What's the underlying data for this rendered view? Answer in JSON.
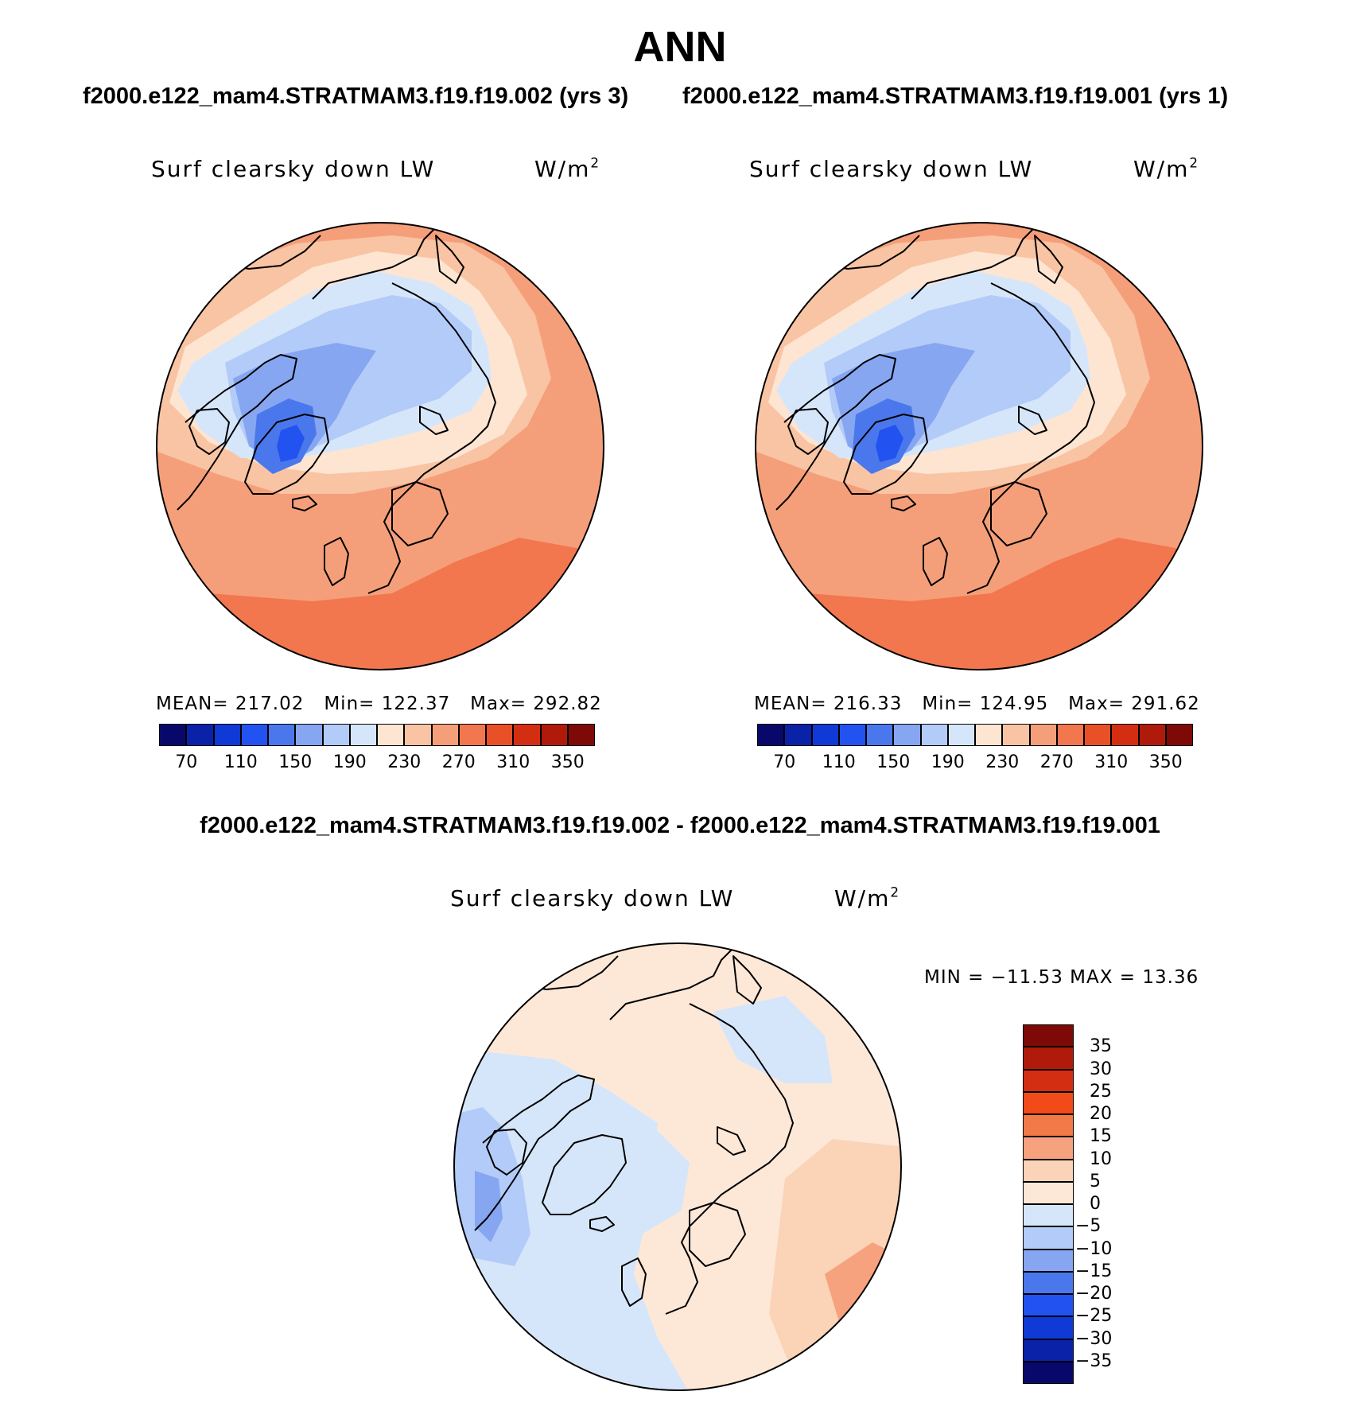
{
  "header": {
    "title": "ANN",
    "left_case": "f2000.e122_mam4.STRATMAM3.f19.f19.002 (yrs 3)",
    "right_case": "f2000.e122_mam4.STRATMAM3.f19.f19.001 (yrs 1)",
    "diff_title": "f2000.e122_mam4.STRATMAM3.f19.f19.002 - f2000.e122_mam4.STRATMAM3.f19.f19.001"
  },
  "panels": {
    "left": {
      "variable": "Surf clearsky down LW",
      "units_base": "W/m",
      "units_exp": "2",
      "mean_label": "MEAN=",
      "mean": "217.02",
      "min_label": "Min=",
      "min": "122.37",
      "max_label": "Max=",
      "max": "292.82"
    },
    "right": {
      "variable": "Surf clearsky down LW",
      "units_base": "W/m",
      "units_exp": "2",
      "mean_label": "MEAN=",
      "mean": "216.33",
      "min_label": "Min=",
      "min": "124.95",
      "max_label": "Max=",
      "max": "291.62"
    },
    "diff": {
      "variable": "Surf clearsky down LW",
      "units_base": "W/m",
      "units_exp": "2",
      "minmax_text": "MIN = −11.53 MAX =   13.36"
    }
  },
  "colorbars": {
    "absolute": {
      "colors": [
        "#08086b",
        "#0a22a8",
        "#0f3ad6",
        "#2253f0",
        "#4a78ec",
        "#86a6f2",
        "#b3cbf8",
        "#d6e6fa",
        "#fde5d2",
        "#f9c4a3",
        "#f59f7a",
        "#f2764e",
        "#e85127",
        "#d42e12",
        "#b01a0a",
        "#7d0a06"
      ],
      "ticks": [
        "70",
        "110",
        "150",
        "190",
        "230",
        "270",
        "310",
        "350"
      ]
    },
    "difference": {
      "colors": [
        "#7d0a06",
        "#b01a0a",
        "#d42e12",
        "#f24a18",
        "#f27a46",
        "#f6a27e",
        "#fbd3b7",
        "#fde8d8",
        "#d6e6fa",
        "#b3cbf8",
        "#86a6f2",
        "#4a78ec",
        "#2253f0",
        "#0f3ad6",
        "#0a22a8",
        "#08086b"
      ],
      "ticks": [
        "35",
        "30",
        "25",
        "20",
        "15",
        "10",
        "5",
        "0",
        "−5",
        "−10",
        "−15",
        "−20",
        "−25",
        "−30",
        "−35"
      ]
    }
  },
  "map_colors": {
    "abs": {
      "v1": "#f2764e",
      "v2": "#f59f7a",
      "v3": "#f9c4a3",
      "v4": "#fde5d2",
      "v5": "#d6e6fa",
      "v6": "#b3cbf8",
      "v7": "#86a6f2",
      "v8": "#4a78ec",
      "v9": "#2253f0"
    },
    "diff": {
      "pos1": "#fde8d8",
      "pos2": "#fbd3b7",
      "pos3": "#f6a27e",
      "neg1": "#d6e6fa",
      "neg2": "#b3cbf8",
      "neg3": "#86a6f2"
    }
  }
}
